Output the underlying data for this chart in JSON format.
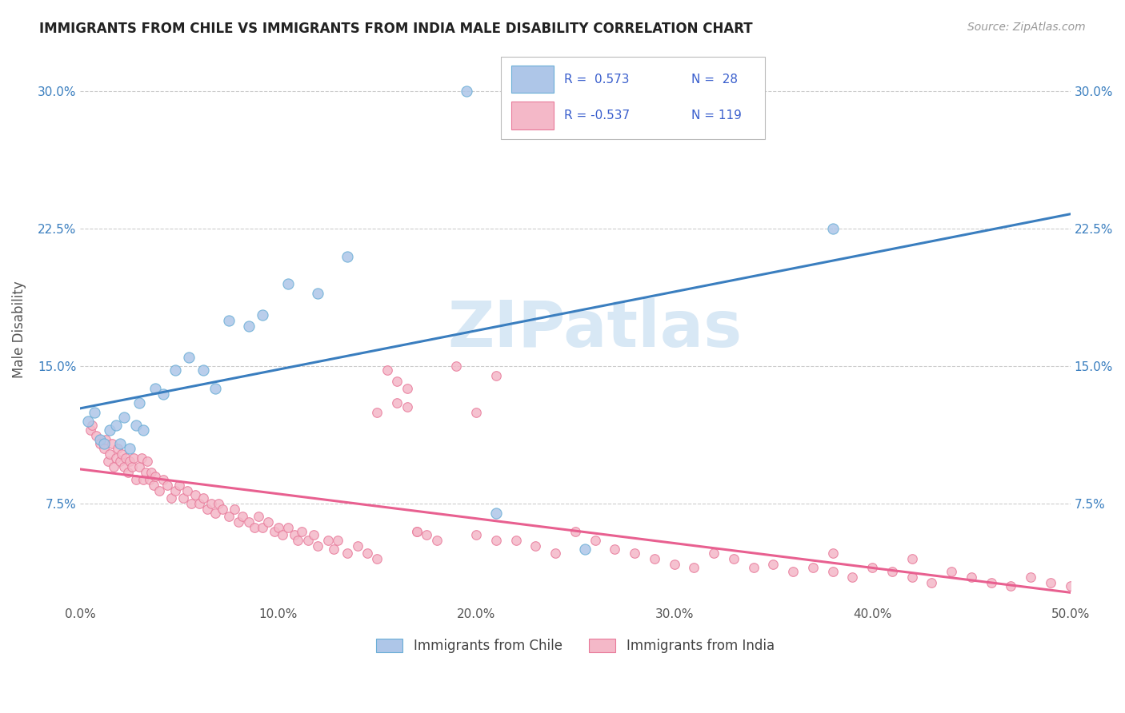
{
  "title": "IMMIGRANTS FROM CHILE VS IMMIGRANTS FROM INDIA MALE DISABILITY CORRELATION CHART",
  "source": "Source: ZipAtlas.com",
  "xlim": [
    0.0,
    0.5
  ],
  "ylim": [
    0.02,
    0.32
  ],
  "chile_color": "#aec6e8",
  "chile_edge_color": "#6aaed6",
  "india_color": "#f4b8c8",
  "india_edge_color": "#e87a9a",
  "chile_line_color": "#3a7ebf",
  "india_line_color": "#e86090",
  "legend_text_color": "#3a5fcd",
  "watermark_color": "#d8e8f5",
  "r_chile": 0.573,
  "n_chile": 28,
  "r_india": -0.537,
  "n_india": 119,
  "chile_scatter_x": [
    0.004,
    0.007,
    0.01,
    0.012,
    0.015,
    0.018,
    0.02,
    0.022,
    0.025,
    0.028,
    0.03,
    0.032,
    0.038,
    0.042,
    0.048,
    0.055,
    0.062,
    0.068,
    0.075,
    0.085,
    0.092,
    0.105,
    0.12,
    0.135,
    0.195,
    0.21,
    0.255,
    0.38
  ],
  "chile_scatter_y": [
    0.12,
    0.125,
    0.11,
    0.108,
    0.115,
    0.118,
    0.108,
    0.122,
    0.105,
    0.118,
    0.13,
    0.115,
    0.138,
    0.135,
    0.148,
    0.155,
    0.148,
    0.138,
    0.175,
    0.172,
    0.178,
    0.195,
    0.19,
    0.21,
    0.3,
    0.07,
    0.05,
    0.225
  ],
  "india_scatter_x": [
    0.005,
    0.006,
    0.008,
    0.01,
    0.012,
    0.013,
    0.014,
    0.015,
    0.016,
    0.017,
    0.018,
    0.019,
    0.02,
    0.021,
    0.022,
    0.023,
    0.024,
    0.025,
    0.026,
    0.027,
    0.028,
    0.03,
    0.031,
    0.032,
    0.033,
    0.034,
    0.035,
    0.036,
    0.037,
    0.038,
    0.04,
    0.042,
    0.044,
    0.046,
    0.048,
    0.05,
    0.052,
    0.054,
    0.056,
    0.058,
    0.06,
    0.062,
    0.064,
    0.066,
    0.068,
    0.07,
    0.072,
    0.075,
    0.078,
    0.08,
    0.082,
    0.085,
    0.088,
    0.09,
    0.092,
    0.095,
    0.098,
    0.1,
    0.102,
    0.105,
    0.108,
    0.11,
    0.112,
    0.115,
    0.118,
    0.12,
    0.125,
    0.128,
    0.13,
    0.135,
    0.14,
    0.145,
    0.15,
    0.155,
    0.16,
    0.165,
    0.17,
    0.175,
    0.18,
    0.19,
    0.2,
    0.21,
    0.22,
    0.23,
    0.24,
    0.25,
    0.26,
    0.27,
    0.28,
    0.29,
    0.3,
    0.31,
    0.32,
    0.33,
    0.34,
    0.35,
    0.36,
    0.37,
    0.38,
    0.39,
    0.4,
    0.41,
    0.42,
    0.43,
    0.44,
    0.45,
    0.46,
    0.47,
    0.48,
    0.49,
    0.5,
    0.38,
    0.42,
    0.15,
    0.16,
    0.165,
    0.17,
    0.2,
    0.21
  ],
  "india_scatter_y": [
    0.115,
    0.118,
    0.112,
    0.108,
    0.105,
    0.11,
    0.098,
    0.102,
    0.108,
    0.095,
    0.1,
    0.105,
    0.098,
    0.102,
    0.095,
    0.1,
    0.092,
    0.098,
    0.095,
    0.1,
    0.088,
    0.095,
    0.1,
    0.088,
    0.092,
    0.098,
    0.088,
    0.092,
    0.085,
    0.09,
    0.082,
    0.088,
    0.085,
    0.078,
    0.082,
    0.085,
    0.078,
    0.082,
    0.075,
    0.08,
    0.075,
    0.078,
    0.072,
    0.075,
    0.07,
    0.075,
    0.072,
    0.068,
    0.072,
    0.065,
    0.068,
    0.065,
    0.062,
    0.068,
    0.062,
    0.065,
    0.06,
    0.062,
    0.058,
    0.062,
    0.058,
    0.055,
    0.06,
    0.055,
    0.058,
    0.052,
    0.055,
    0.05,
    0.055,
    0.048,
    0.052,
    0.048,
    0.045,
    0.148,
    0.142,
    0.138,
    0.06,
    0.058,
    0.055,
    0.15,
    0.125,
    0.145,
    0.055,
    0.052,
    0.048,
    0.06,
    0.055,
    0.05,
    0.048,
    0.045,
    0.042,
    0.04,
    0.048,
    0.045,
    0.04,
    0.042,
    0.038,
    0.04,
    0.038,
    0.035,
    0.04,
    0.038,
    0.035,
    0.032,
    0.038,
    0.035,
    0.032,
    0.03,
    0.035,
    0.032,
    0.03,
    0.048,
    0.045,
    0.125,
    0.13,
    0.128,
    0.06,
    0.058,
    0.055
  ]
}
